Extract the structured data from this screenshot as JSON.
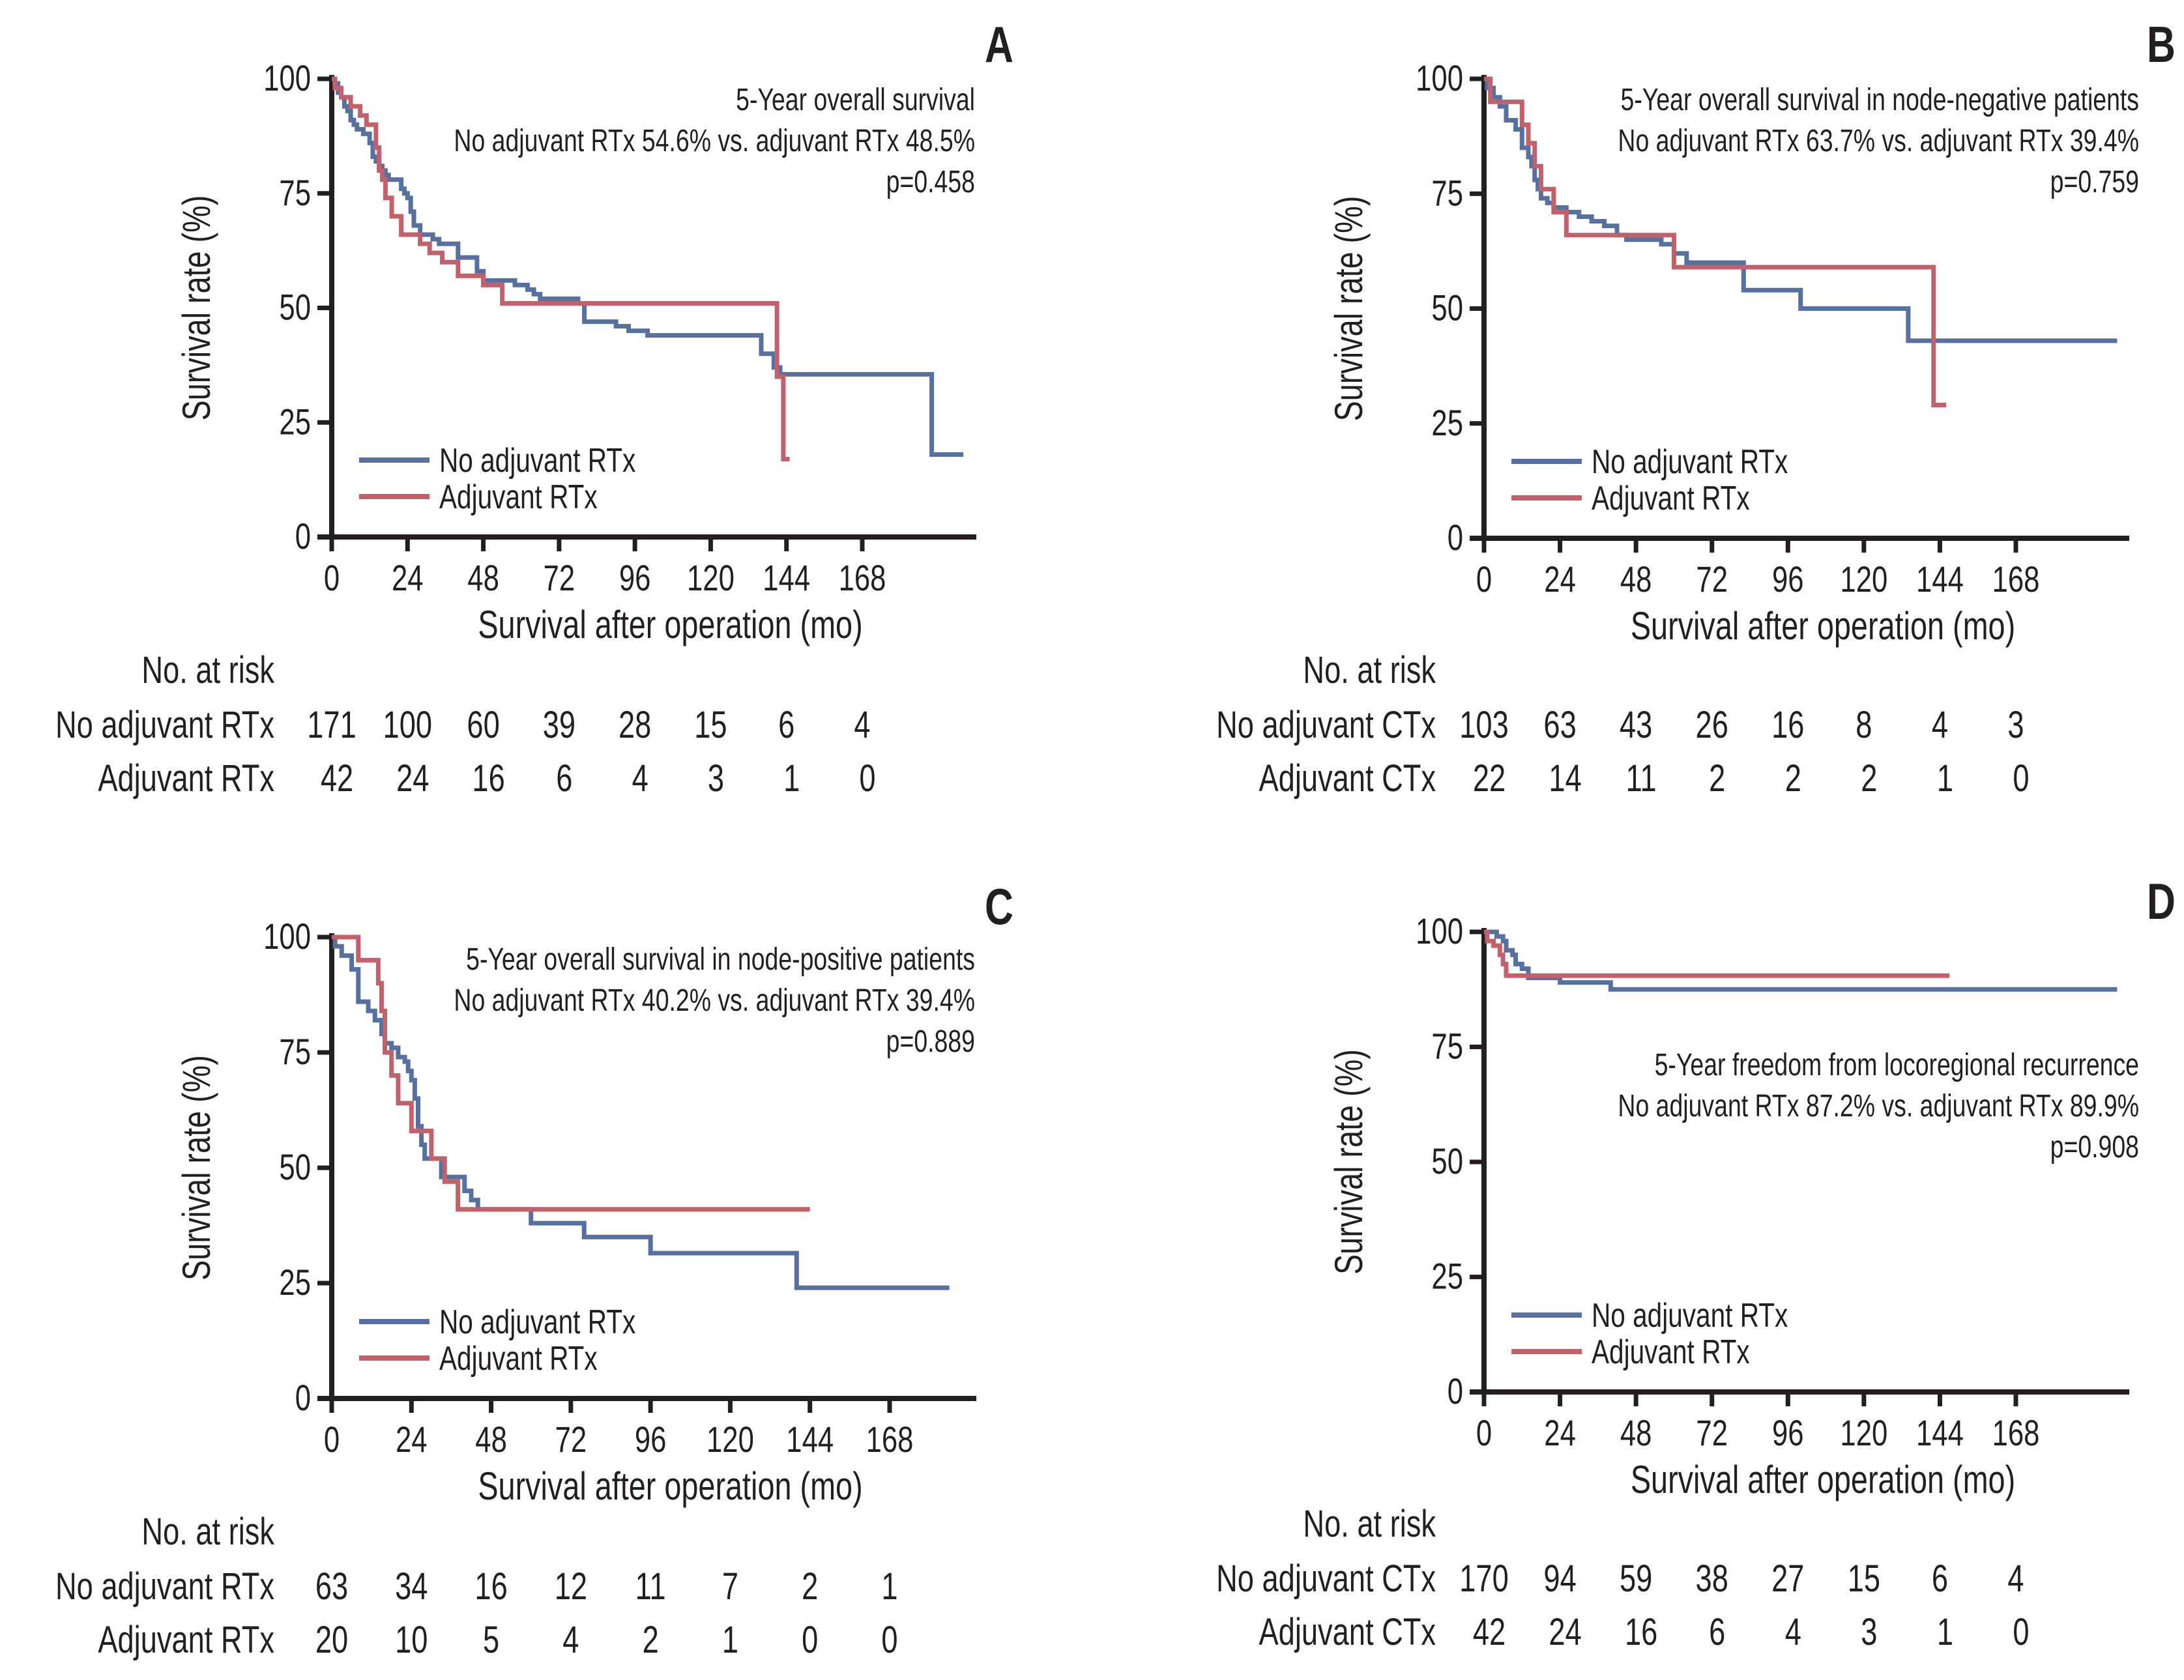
{
  "colors": {
    "no_adjuvant": "#5670a0",
    "adjuvant": "#c0616b",
    "axis": "#231f20"
  },
  "chart_data": [
    {
      "panel": "A",
      "type": "line",
      "step": true,
      "title_lines": [
        "5-Year overall survival",
        "No adjuvant RTx 54.6% vs. adjuvant RTx 48.5%",
        "p=0.458"
      ],
      "title_position": "top-right",
      "xlabel": "Survival after operation (mo)",
      "ylabel": "Survival rate (%)",
      "xticks": [
        0,
        24,
        48,
        72,
        96,
        120,
        144,
        168
      ],
      "yticks": [
        0,
        25,
        50,
        75,
        100
      ],
      "xlim": [
        0,
        204
      ],
      "ylim": [
        0,
        100
      ],
      "legend": {
        "placement": "bottom-left",
        "entries": [
          "No adjuvant RTx",
          "Adjuvant RTx"
        ]
      },
      "series": [
        {
          "name": "No adjuvant RTx",
          "color_key": "no_adjuvant",
          "x": [
            0,
            1,
            2,
            3,
            4,
            5,
            6,
            7,
            8,
            9,
            10,
            12,
            13,
            14,
            15,
            16,
            17,
            18,
            20,
            22,
            23,
            24,
            25,
            26,
            28,
            32,
            34,
            38,
            40,
            46,
            48,
            56,
            58,
            62,
            64,
            66,
            68,
            78,
            80,
            86,
            90,
            94,
            98,
            100,
            134,
            136,
            140,
            142,
            190,
            200
          ],
          "y": [
            100,
            99,
            97,
            96,
            94,
            93,
            91,
            90,
            89,
            89,
            88,
            86,
            83,
            82,
            81,
            80,
            79,
            78,
            78,
            76,
            75,
            74,
            71,
            68,
            66,
            65,
            64,
            64,
            61,
            58,
            56,
            56,
            55,
            54,
            53,
            52,
            52,
            51,
            47,
            47,
            46,
            45,
            45,
            44,
            44,
            40,
            37,
            35.5,
            18,
            18
          ]
        },
        {
          "name": "Adjuvant RTx",
          "color_key": "adjuvant",
          "x": [
            0,
            1,
            3,
            6,
            9,
            11,
            14,
            15,
            16,
            17,
            19,
            22,
            28,
            31,
            35,
            40,
            48,
            54,
            140,
            141,
            143,
            145
          ],
          "y": [
            100,
            98,
            96,
            94,
            92,
            90,
            85,
            80,
            78,
            74,
            70,
            66,
            64,
            62,
            60,
            57,
            55,
            51,
            51,
            35,
            17,
            17
          ]
        }
      ],
      "risk_table": {
        "header": "No. at risk",
        "rows": [
          {
            "label": "No adjuvant RTx",
            "values": [
              171,
              100,
              60,
              39,
              28,
              15,
              6,
              4
            ]
          },
          {
            "label": "Adjuvant RTx",
            "values": [
              42,
              24,
              16,
              6,
              4,
              3,
              1,
              0
            ]
          }
        ]
      }
    },
    {
      "panel": "B",
      "type": "line",
      "step": true,
      "title_lines": [
        "5-Year overall survival in node-negative patients",
        "No adjuvant RTx 63.7% vs. adjuvant RTx 39.4%",
        "p=0.759"
      ],
      "title_position": "top-right",
      "xlabel": "Survival after operation (mo)",
      "ylabel": "Survival rate (%)",
      "xticks": [
        0,
        24,
        48,
        72,
        96,
        120,
        144,
        168
      ],
      "yticks": [
        0,
        25,
        50,
        75,
        100
      ],
      "xlim": [
        0,
        204
      ],
      "ylim": [
        0,
        100
      ],
      "legend": {
        "placement": "bottom-left",
        "entries": [
          "No adjuvant RTx",
          "Adjuvant RTx"
        ]
      },
      "series": [
        {
          "name": "No adjuvant RTx",
          "color_key": "no_adjuvant",
          "x": [
            0,
            1,
            3,
            5,
            7,
            10,
            12,
            14,
            15,
            16,
            17,
            18,
            20,
            22,
            24,
            26,
            30,
            34,
            38,
            42,
            45,
            50,
            56,
            60,
            64,
            70,
            82,
            86,
            100,
            134,
            200
          ],
          "y": [
            100,
            98,
            96,
            94,
            91,
            89,
            85,
            83,
            81,
            78,
            76,
            74,
            73,
            72,
            72,
            71,
            70,
            69,
            68,
            66,
            65,
            65,
            64,
            62,
            60,
            60,
            54,
            54,
            50,
            43,
            43
          ]
        },
        {
          "name": "Adjuvant RTx",
          "color_key": "adjuvant",
          "x": [
            0,
            2,
            9,
            12,
            14,
            16,
            18,
            22,
            26,
            38,
            52,
            60,
            141,
            142,
            146
          ],
          "y": [
            100,
            95,
            95,
            90,
            86,
            81,
            76,
            71,
            66,
            66,
            66,
            59,
            59,
            29,
            29
          ]
        }
      ],
      "risk_table": {
        "header": "No. at risk",
        "rows": [
          {
            "label": "No adjuvant CTx",
            "values": [
              103,
              63,
              43,
              26,
              16,
              8,
              4,
              3
            ]
          },
          {
            "label": "Adjuvant CTx",
            "values": [
              22,
              14,
              11,
              2,
              2,
              2,
              1,
              0
            ]
          }
        ]
      }
    },
    {
      "panel": "C",
      "type": "line",
      "step": true,
      "title_lines": [
        "5-Year overall survival in node-positive patients",
        "No adjuvant RTx 40.2% vs. adjuvant RTx 39.4%",
        "p=0.889"
      ],
      "title_position": "top-right",
      "xlabel": "Survival after operation (mo)",
      "ylabel": "Survival rate (%)",
      "xticks": [
        0,
        24,
        48,
        72,
        96,
        120,
        144,
        168
      ],
      "yticks": [
        0,
        25,
        50,
        75,
        100
      ],
      "xlim": [
        0,
        194
      ],
      "ylim": [
        0,
        100
      ],
      "legend": {
        "placement": "bottom-left",
        "entries": [
          "No adjuvant RTx",
          "Adjuvant RTx"
        ]
      },
      "series": [
        {
          "name": "No adjuvant RTx",
          "color_key": "no_adjuvant",
          "x": [
            0,
            1,
            3,
            6,
            8,
            11,
            13,
            15,
            16,
            18,
            20,
            22,
            23,
            24,
            25,
            26,
            27,
            28,
            32,
            33,
            40,
            42,
            44,
            60,
            76,
            96,
            140,
            186
          ],
          "y": [
            100,
            98,
            96,
            93,
            86,
            84,
            82,
            79,
            77,
            76,
            74,
            73,
            71,
            69,
            65,
            59,
            55,
            52,
            52,
            48,
            45,
            43,
            41,
            38,
            35,
            31.5,
            24,
            24
          ]
        },
        {
          "name": "Adjuvant RTx",
          "color_key": "adjuvant",
          "x": [
            0,
            4,
            8,
            14,
            15,
            16,
            18,
            20,
            24,
            28,
            30,
            34,
            38,
            40,
            144
          ],
          "y": [
            100,
            100,
            95,
            90,
            84,
            75,
            70,
            64,
            58,
            58,
            52,
            47,
            41,
            41,
            41
          ]
        }
      ],
      "risk_table": {
        "header": "No. at risk",
        "rows": [
          {
            "label": "No adjuvant RTx",
            "values": [
              63,
              34,
              16,
              12,
              11,
              7,
              2,
              1
            ]
          },
          {
            "label": "Adjuvant RTx",
            "values": [
              20,
              10,
              5,
              4,
              2,
              1,
              0,
              0
            ]
          }
        ]
      }
    },
    {
      "panel": "D",
      "type": "line",
      "step": true,
      "title_lines": [
        "5-Year freedom from locoregional recurrence",
        "No adjuvant RTx 87.2% vs. adjuvant RTx 89.9%",
        "p=0.908"
      ],
      "title_position": "middle-right",
      "xlabel": "Survival after operation (mo)",
      "ylabel": "Survival rate (%)",
      "xticks": [
        0,
        24,
        48,
        72,
        96,
        120,
        144,
        168
      ],
      "yticks": [
        0,
        25,
        50,
        75,
        100
      ],
      "xlim": [
        0,
        204
      ],
      "ylim": [
        0,
        100
      ],
      "legend": {
        "placement": "bottom-left",
        "entries": [
          "No adjuvant RTx",
          "Adjuvant RTx"
        ]
      },
      "series": [
        {
          "name": "No adjuvant RTx",
          "color_key": "no_adjuvant",
          "x": [
            0,
            1,
            4,
            6,
            7,
            9,
            10,
            12,
            14,
            24,
            40,
            200
          ],
          "y": [
            100,
            100,
            99,
            98,
            96,
            95,
            93,
            92,
            90,
            89,
            87.5,
            87.5
          ]
        },
        {
          "name": "Adjuvant RTx",
          "color_key": "adjuvant",
          "x": [
            0,
            1,
            3,
            5,
            6,
            7,
            147
          ],
          "y": [
            100,
            98,
            97,
            95,
            93,
            90.5,
            90.5
          ]
        }
      ],
      "risk_table": {
        "header": "No. at risk",
        "rows": [
          {
            "label": "No adjuvant CTx",
            "values": [
              170,
              94,
              59,
              38,
              27,
              15,
              6,
              4
            ]
          },
          {
            "label": "Adjuvant CTx",
            "values": [
              42,
              24,
              16,
              6,
              4,
              3,
              1,
              0
            ]
          }
        ]
      }
    }
  ]
}
